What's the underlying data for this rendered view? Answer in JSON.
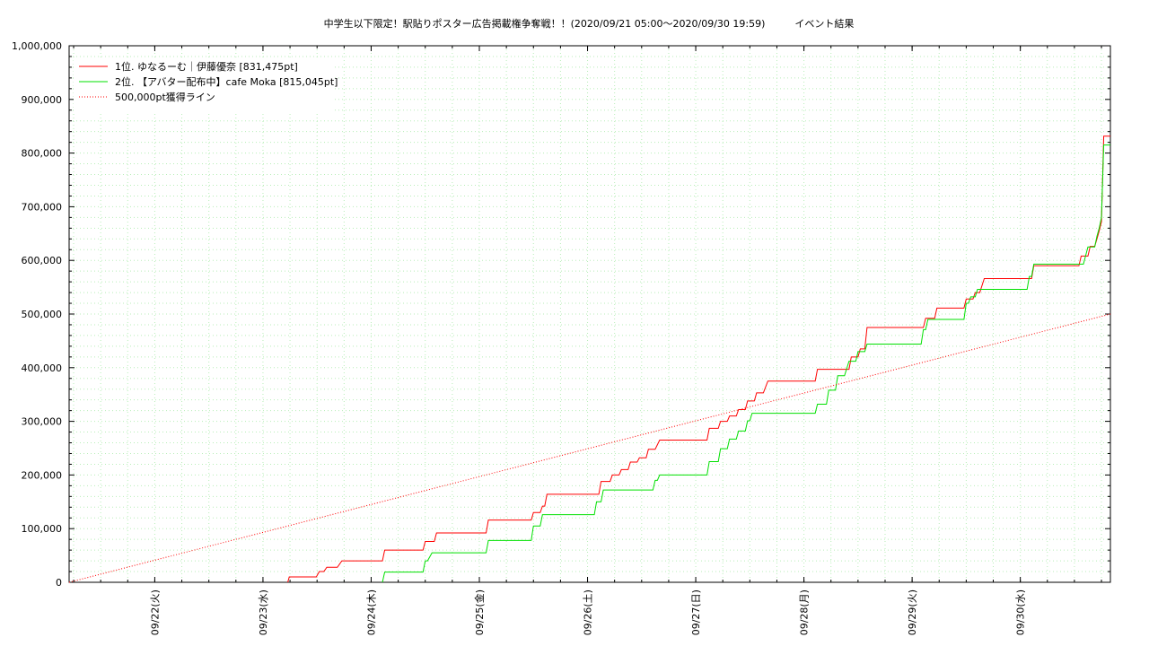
{
  "chart_data": {
    "type": "line",
    "title": "中学生以下限定！駅貼りポスター広告掲載権争奪戦！！(2020/09/21 05:00〜2020/09/30 19:59)　　　イベント結果",
    "xlabel": "",
    "ylabel": "",
    "ylim": [
      0,
      1000000
    ],
    "xlim": [
      "2020-09-21 05:00",
      "2020-09-30 19:59"
    ],
    "grid": true,
    "legend_position": "top-left",
    "y_ticks": [
      "0",
      "100,000",
      "200,000",
      "300,000",
      "400,000",
      "500,000",
      "600,000",
      "700,000",
      "800,000",
      "900,000",
      "1,000,000"
    ],
    "x_ticks": [
      {
        "t": "2020-09-22 00:00",
        "label": "09/22(火)"
      },
      {
        "t": "2020-09-23 00:00",
        "label": "09/23(水)"
      },
      {
        "t": "2020-09-24 00:00",
        "label": "09/24(木)"
      },
      {
        "t": "2020-09-25 00:00",
        "label": "09/25(金)"
      },
      {
        "t": "2020-09-26 00:00",
        "label": "09/26(土)"
      },
      {
        "t": "2020-09-27 00:00",
        "label": "09/27(日)"
      },
      {
        "t": "2020-09-28 00:00",
        "label": "09/28(月)"
      },
      {
        "t": "2020-09-29 00:00",
        "label": "09/29(火)"
      },
      {
        "t": "2020-09-30 00:00",
        "label": "09/30(水)"
      }
    ],
    "series": [
      {
        "name": "1位. ゆなるーむ｜伊藤優奈 [831,475pt]",
        "color": "#ff0000",
        "style": "solid",
        "points": [
          [
            "2020-09-23 05:30",
            0
          ],
          [
            "2020-09-23 05:50",
            10000
          ],
          [
            "2020-09-23 11:50",
            10000
          ],
          [
            "2020-09-23 12:30",
            20000
          ],
          [
            "2020-09-23 13:30",
            20000
          ],
          [
            "2020-09-23 14:10",
            28000
          ],
          [
            "2020-09-23 16:30",
            28000
          ],
          [
            "2020-09-23 17:30",
            40000
          ],
          [
            "2020-09-24 02:30",
            40000
          ],
          [
            "2020-09-24 03:00",
            60000
          ],
          [
            "2020-09-24 11:30",
            60000
          ],
          [
            "2020-09-24 12:00",
            76000
          ],
          [
            "2020-09-24 14:00",
            76000
          ],
          [
            "2020-09-24 14:30",
            92000
          ],
          [
            "2020-09-25 01:30",
            92000
          ],
          [
            "2020-09-25 02:00",
            116000
          ],
          [
            "2020-09-25 11:30",
            116000
          ],
          [
            "2020-09-25 12:00",
            130000
          ],
          [
            "2020-09-25 13:30",
            130000
          ],
          [
            "2020-09-25 14:00",
            142000
          ],
          [
            "2020-09-25 14:30",
            142000
          ],
          [
            "2020-09-25 15:00",
            164000
          ],
          [
            "2020-09-26 02:30",
            164000
          ],
          [
            "2020-09-26 03:00",
            188000
          ],
          [
            "2020-09-26 05:00",
            188000
          ],
          [
            "2020-09-26 05:30",
            200000
          ],
          [
            "2020-09-26 07:00",
            200000
          ],
          [
            "2020-09-26 07:30",
            210000
          ],
          [
            "2020-09-26 09:00",
            210000
          ],
          [
            "2020-09-26 09:30",
            224000
          ],
          [
            "2020-09-26 11:00",
            224000
          ],
          [
            "2020-09-26 11:30",
            232000
          ],
          [
            "2020-09-26 13:00",
            232000
          ],
          [
            "2020-09-26 13:30",
            248000
          ],
          [
            "2020-09-26 15:00",
            248000
          ],
          [
            "2020-09-26 16:00",
            265000
          ],
          [
            "2020-09-27 02:30",
            265000
          ],
          [
            "2020-09-27 03:00",
            287000
          ],
          [
            "2020-09-27 05:00",
            287000
          ],
          [
            "2020-09-27 05:30",
            300000
          ],
          [
            "2020-09-27 07:00",
            300000
          ],
          [
            "2020-09-27 07:30",
            310000
          ],
          [
            "2020-09-27 09:00",
            310000
          ],
          [
            "2020-09-27 09:30",
            322000
          ],
          [
            "2020-09-27 11:00",
            322000
          ],
          [
            "2020-09-27 11:30",
            338000
          ],
          [
            "2020-09-27 13:00",
            338000
          ],
          [
            "2020-09-27 13:30",
            353000
          ],
          [
            "2020-09-27 15:00",
            353000
          ],
          [
            "2020-09-27 16:00",
            375000
          ],
          [
            "2020-09-28 02:30",
            375000
          ],
          [
            "2020-09-28 03:00",
            397000
          ],
          [
            "2020-09-28 10:00",
            397000
          ],
          [
            "2020-09-28 10:30",
            420000
          ],
          [
            "2020-09-28 12:00",
            420000
          ],
          [
            "2020-09-28 12:30",
            435000
          ],
          [
            "2020-09-28 13:30",
            435000
          ],
          [
            "2020-09-28 14:00",
            475000
          ],
          [
            "2020-09-29 02:30",
            475000
          ],
          [
            "2020-09-29 03:00",
            492000
          ],
          [
            "2020-09-29 05:00",
            492000
          ],
          [
            "2020-09-29 05:30",
            511000
          ],
          [
            "2020-09-29 11:30",
            511000
          ],
          [
            "2020-09-29 12:00",
            528000
          ],
          [
            "2020-09-29 13:30",
            528000
          ],
          [
            "2020-09-29 14:00",
            540000
          ],
          [
            "2020-09-29 15:00",
            540000
          ],
          [
            "2020-09-29 16:00",
            566000
          ],
          [
            "2020-09-30 02:30",
            566000
          ],
          [
            "2020-09-30 03:00",
            590000
          ],
          [
            "2020-09-30 13:00",
            590000
          ],
          [
            "2020-09-30 13:30",
            608000
          ],
          [
            "2020-09-30 15:00",
            608000
          ],
          [
            "2020-09-30 15:30",
            626000
          ],
          [
            "2020-09-30 16:30",
            626000
          ],
          [
            "2020-09-30 17:00",
            640000
          ],
          [
            "2020-09-30 17:30",
            655000
          ],
          [
            "2020-09-30 18:00",
            672000
          ],
          [
            "2020-09-30 18:30",
            831475
          ],
          [
            "2020-09-30 19:59",
            831475
          ]
        ]
      },
      {
        "name": "2位. 【アバター配布中】cafe Moka [815,045pt]",
        "color": "#00e000",
        "style": "solid",
        "points": [
          [
            "2020-09-24 02:30",
            0
          ],
          [
            "2020-09-24 03:00",
            19000
          ],
          [
            "2020-09-24 11:30",
            19000
          ],
          [
            "2020-09-24 12:00",
            40000
          ],
          [
            "2020-09-24 12:30",
            40000
          ],
          [
            "2020-09-24 13:30",
            55000
          ],
          [
            "2020-09-25 01:30",
            55000
          ],
          [
            "2020-09-25 02:00",
            78000
          ],
          [
            "2020-09-25 11:30",
            78000
          ],
          [
            "2020-09-25 12:00",
            105000
          ],
          [
            "2020-09-25 13:30",
            105000
          ],
          [
            "2020-09-25 14:00",
            126000
          ],
          [
            "2020-09-26 01:30",
            126000
          ],
          [
            "2020-09-26 02:00",
            150000
          ],
          [
            "2020-09-26 03:00",
            150000
          ],
          [
            "2020-09-26 03:30",
            172000
          ],
          [
            "2020-09-26 14:30",
            172000
          ],
          [
            "2020-09-26 15:00",
            190000
          ],
          [
            "2020-09-26 15:30",
            190000
          ],
          [
            "2020-09-26 16:00",
            200000
          ],
          [
            "2020-09-27 02:30",
            200000
          ],
          [
            "2020-09-27 03:00",
            225000
          ],
          [
            "2020-09-27 05:00",
            225000
          ],
          [
            "2020-09-27 05:30",
            249000
          ],
          [
            "2020-09-27 07:00",
            249000
          ],
          [
            "2020-09-27 07:30",
            267000
          ],
          [
            "2020-09-27 09:00",
            267000
          ],
          [
            "2020-09-27 09:30",
            282000
          ],
          [
            "2020-09-27 11:00",
            282000
          ],
          [
            "2020-09-27 11:30",
            301000
          ],
          [
            "2020-09-27 12:00",
            301000
          ],
          [
            "2020-09-27 12:30",
            315000
          ],
          [
            "2020-09-28 02:30",
            315000
          ],
          [
            "2020-09-28 03:00",
            332000
          ],
          [
            "2020-09-28 05:00",
            332000
          ],
          [
            "2020-09-28 05:30",
            358000
          ],
          [
            "2020-09-28 07:00",
            358000
          ],
          [
            "2020-09-28 07:30",
            385000
          ],
          [
            "2020-09-28 09:00",
            385000
          ],
          [
            "2020-09-28 10:00",
            412000
          ],
          [
            "2020-09-28 11:30",
            412000
          ],
          [
            "2020-09-28 12:00",
            430000
          ],
          [
            "2020-09-28 13:30",
            430000
          ],
          [
            "2020-09-28 14:00",
            444000
          ],
          [
            "2020-09-29 02:00",
            444000
          ],
          [
            "2020-09-29 02:30",
            471000
          ],
          [
            "2020-09-29 03:00",
            471000
          ],
          [
            "2020-09-29 03:30",
            490000
          ],
          [
            "2020-09-29 11:30",
            490000
          ],
          [
            "2020-09-29 12:00",
            520000
          ],
          [
            "2020-09-29 12:30",
            520000
          ],
          [
            "2020-09-29 13:00",
            532000
          ],
          [
            "2020-09-29 14:00",
            532000
          ],
          [
            "2020-09-29 14:30",
            546000
          ],
          [
            "2020-09-30 01:30",
            546000
          ],
          [
            "2020-09-30 02:00",
            570000
          ],
          [
            "2020-09-30 02:30",
            570000
          ],
          [
            "2020-09-30 03:00",
            593000
          ],
          [
            "2020-09-30 14:00",
            593000
          ],
          [
            "2020-09-30 15:00",
            625000
          ],
          [
            "2020-09-30 16:30",
            625000
          ],
          [
            "2020-09-30 17:00",
            645000
          ],
          [
            "2020-09-30 17:30",
            660000
          ],
          [
            "2020-09-30 18:00",
            680000
          ],
          [
            "2020-09-30 18:30",
            815045
          ],
          [
            "2020-09-30 19:59",
            815045
          ]
        ]
      },
      {
        "name": "500,000pt獲得ライン",
        "color": "#ff0000",
        "style": "dotted",
        "points": [
          [
            "2020-09-21 05:00",
            0
          ],
          [
            "2020-09-30 19:59",
            500000
          ]
        ]
      }
    ]
  }
}
